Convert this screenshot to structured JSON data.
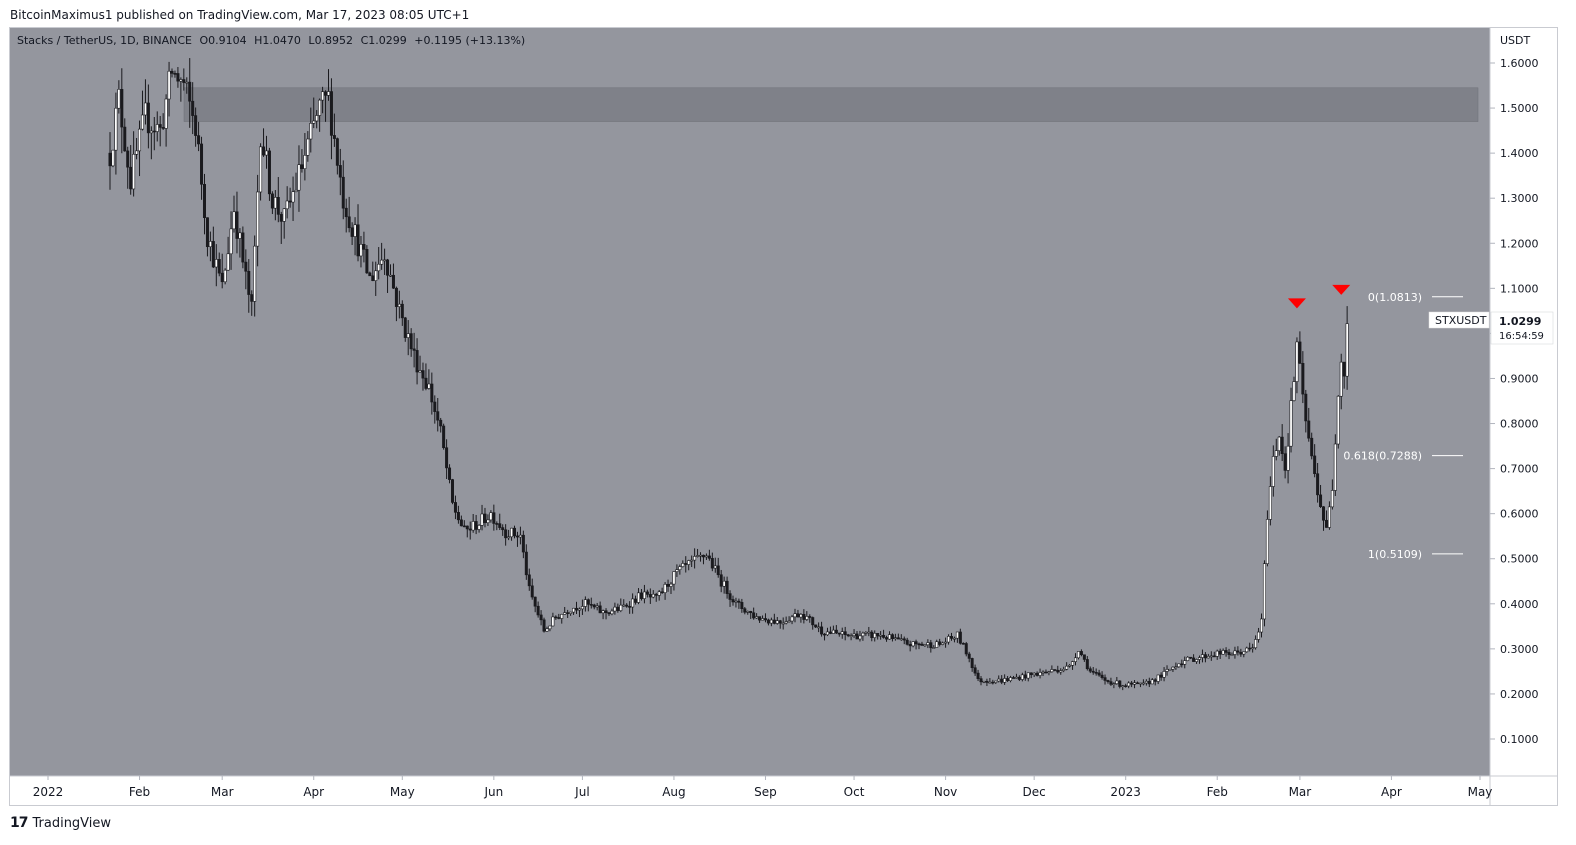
{
  "publish_header": "BitcoinMaximus1 published on TradingView.com, Mar 17, 2023 08:05 UTC+1",
  "legend": {
    "symbol": "Stacks / TetherUS, 1D, BINANCE",
    "open_label": "O",
    "open": "0.9104",
    "high_label": "H",
    "high": "1.0470",
    "low_label": "L",
    "low": "0.8952",
    "close_label": "C",
    "close": "1.0299",
    "change": "+0.1195 (+13.13%)"
  },
  "price_axis": {
    "currency": "USDT",
    "ticks": [
      "1.6000",
      "1.5000",
      "1.4000",
      "1.3000",
      "1.2000",
      "1.1000",
      "1.0000",
      "0.9000",
      "0.8000",
      "0.7000",
      "0.6000",
      "0.5000",
      "0.4000",
      "0.3000",
      "0.2000",
      "0.1000"
    ]
  },
  "price_tag": {
    "symbol": "STXUSDT",
    "price": "1.0299",
    "countdown": "16:54:59"
  },
  "time_axis": {
    "labels": [
      "2022",
      "Feb",
      "Mar",
      "Apr",
      "May",
      "Jun",
      "Jul",
      "Aug",
      "Sep",
      "Oct",
      "Nov",
      "Dec",
      "2023",
      "Feb",
      "Mar",
      "Apr",
      "May"
    ]
  },
  "fib_levels": [
    {
      "label": "0(1.0813)",
      "price": 1.0813
    },
    {
      "label": "0.618(0.7288)",
      "price": 0.7288
    },
    {
      "label": "1(0.5109)",
      "price": 0.5109
    }
  ],
  "resistance_zone": {
    "low": 1.47,
    "high": 1.545
  },
  "footer": {
    "logo_text": "17",
    "brand": "TradingView"
  },
  "colors": {
    "background": "#94969e",
    "resistance": "#7f8189",
    "candle": "#1a1a1e",
    "marker": "#ff0000",
    "fib_line": "#ffffff"
  },
  "chart_data": {
    "type": "candlestick",
    "title": "Stacks / TetherUS, 1D, BINANCE",
    "ylabel": "USDT",
    "ylim": [
      0.0,
      1.65
    ],
    "xlim": [
      "2022-01-01",
      "2023-05-01"
    ],
    "markers": [
      {
        "date": "2023-02-28",
        "price": 1.06,
        "shape": "triangle-down"
      },
      {
        "date": "2023-03-15",
        "price": 1.09,
        "shape": "triangle-down"
      }
    ],
    "close_path": [
      {
        "date": "2022-01-22",
        "price": 1.4
      },
      {
        "date": "2022-01-25",
        "price": 1.52
      },
      {
        "date": "2022-01-29",
        "price": 1.34
      },
      {
        "date": "2022-02-03",
        "price": 1.48
      },
      {
        "date": "2022-02-08",
        "price": 1.45
      },
      {
        "date": "2022-02-12",
        "price": 1.58
      },
      {
        "date": "2022-02-16",
        "price": 1.55
      },
      {
        "date": "2022-02-20",
        "price": 1.46
      },
      {
        "date": "2022-02-24",
        "price": 1.22
      },
      {
        "date": "2022-03-01",
        "price": 1.1
      },
      {
        "date": "2022-03-05",
        "price": 1.28
      },
      {
        "date": "2022-03-09",
        "price": 1.12
      },
      {
        "date": "2022-03-11",
        "price": 1.05
      },
      {
        "date": "2022-03-14",
        "price": 1.45
      },
      {
        "date": "2022-03-18",
        "price": 1.3
      },
      {
        "date": "2022-03-22",
        "price": 1.25
      },
      {
        "date": "2022-03-27",
        "price": 1.35
      },
      {
        "date": "2022-04-03",
        "price": 1.5
      },
      {
        "date": "2022-04-06",
        "price": 1.52
      },
      {
        "date": "2022-04-11",
        "price": 1.3
      },
      {
        "date": "2022-04-15",
        "price": 1.22
      },
      {
        "date": "2022-04-20",
        "price": 1.12
      },
      {
        "date": "2022-04-25",
        "price": 1.18
      },
      {
        "date": "2022-04-30",
        "price": 1.05
      },
      {
        "date": "2022-05-05",
        "price": 0.95
      },
      {
        "date": "2022-05-10",
        "price": 0.88
      },
      {
        "date": "2022-05-14",
        "price": 0.78
      },
      {
        "date": "2022-05-18",
        "price": 0.62
      },
      {
        "date": "2022-05-22",
        "price": 0.56
      },
      {
        "date": "2022-05-27",
        "price": 0.58
      },
      {
        "date": "2022-05-31",
        "price": 0.6
      },
      {
        "date": "2022-06-05",
        "price": 0.56
      },
      {
        "date": "2022-06-10",
        "price": 0.55
      },
      {
        "date": "2022-06-13",
        "price": 0.43
      },
      {
        "date": "2022-06-18",
        "price": 0.34
      },
      {
        "date": "2022-06-22",
        "price": 0.37
      },
      {
        "date": "2022-06-27",
        "price": 0.39
      },
      {
        "date": "2022-07-02",
        "price": 0.4
      },
      {
        "date": "2022-07-08",
        "price": 0.38
      },
      {
        "date": "2022-07-14",
        "price": 0.39
      },
      {
        "date": "2022-07-21",
        "price": 0.42
      },
      {
        "date": "2022-07-26",
        "price": 0.41
      },
      {
        "date": "2022-08-02",
        "price": 0.47
      },
      {
        "date": "2022-08-12",
        "price": 0.51
      },
      {
        "date": "2022-08-17",
        "price": 0.45
      },
      {
        "date": "2022-08-22",
        "price": 0.4
      },
      {
        "date": "2022-08-29",
        "price": 0.37
      },
      {
        "date": "2022-09-06",
        "price": 0.36
      },
      {
        "date": "2022-09-13",
        "price": 0.38
      },
      {
        "date": "2022-09-20",
        "price": 0.34
      },
      {
        "date": "2022-09-28",
        "price": 0.33
      },
      {
        "date": "2022-10-10",
        "price": 0.33
      },
      {
        "date": "2022-10-20",
        "price": 0.31
      },
      {
        "date": "2022-10-30",
        "price": 0.31
      },
      {
        "date": "2022-11-05",
        "price": 0.33
      },
      {
        "date": "2022-11-09",
        "price": 0.28
      },
      {
        "date": "2022-11-12",
        "price": 0.23
      },
      {
        "date": "2022-11-20",
        "price": 0.23
      },
      {
        "date": "2022-11-28",
        "price": 0.24
      },
      {
        "date": "2022-12-06",
        "price": 0.25
      },
      {
        "date": "2022-12-13",
        "price": 0.26
      },
      {
        "date": "2022-12-16",
        "price": 0.3
      },
      {
        "date": "2022-12-20",
        "price": 0.25
      },
      {
        "date": "2022-12-25",
        "price": 0.23
      },
      {
        "date": "2022-12-31",
        "price": 0.22
      },
      {
        "date": "2023-01-07",
        "price": 0.22
      },
      {
        "date": "2023-01-13",
        "price": 0.24
      },
      {
        "date": "2023-01-19",
        "price": 0.27
      },
      {
        "date": "2023-01-25",
        "price": 0.28
      },
      {
        "date": "2023-02-01",
        "price": 0.29
      },
      {
        "date": "2023-02-07",
        "price": 0.29
      },
      {
        "date": "2023-02-13",
        "price": 0.3
      },
      {
        "date": "2023-02-16",
        "price": 0.36
      },
      {
        "date": "2023-02-18",
        "price": 0.6
      },
      {
        "date": "2023-02-20",
        "price": 0.72
      },
      {
        "date": "2023-02-22",
        "price": 0.78
      },
      {
        "date": "2023-02-24",
        "price": 0.7
      },
      {
        "date": "2023-02-27",
        "price": 0.9
      },
      {
        "date": "2023-02-28",
        "price": 0.98
      },
      {
        "date": "2023-03-02",
        "price": 0.85
      },
      {
        "date": "2023-03-05",
        "price": 0.72
      },
      {
        "date": "2023-03-08",
        "price": 0.62
      },
      {
        "date": "2023-03-10",
        "price": 0.56
      },
      {
        "date": "2023-03-12",
        "price": 0.66
      },
      {
        "date": "2023-03-14",
        "price": 0.88
      },
      {
        "date": "2023-03-15",
        "price": 0.95
      },
      {
        "date": "2023-03-16",
        "price": 0.91
      },
      {
        "date": "2023-03-17",
        "price": 1.03
      }
    ]
  }
}
